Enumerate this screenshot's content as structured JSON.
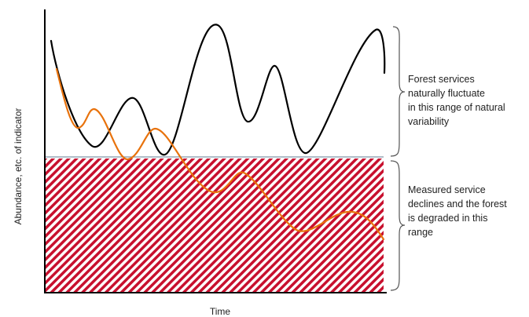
{
  "axes": {
    "x_label": "Time",
    "y_label": "Abundance, etc. of indicator"
  },
  "annotations": {
    "upper_range": [
      "Forest services",
      "naturally fluctuate",
      "in this range of natural",
      "variability"
    ],
    "lower_range": [
      "Measured service",
      "declines and the forest",
      "is degraded in this",
      "range"
    ]
  },
  "series": [
    {
      "id": "natural",
      "description_color": "#000000"
    },
    {
      "id": "degrading",
      "description_color": "#e8720c"
    }
  ],
  "colors": {
    "axis": "#000000",
    "natural_line": "#000000",
    "degrading_line": "#e8720c",
    "hatch_stripe": "#c8102e",
    "threshold_line": "#7f95a8",
    "brace": "#555555"
  }
}
